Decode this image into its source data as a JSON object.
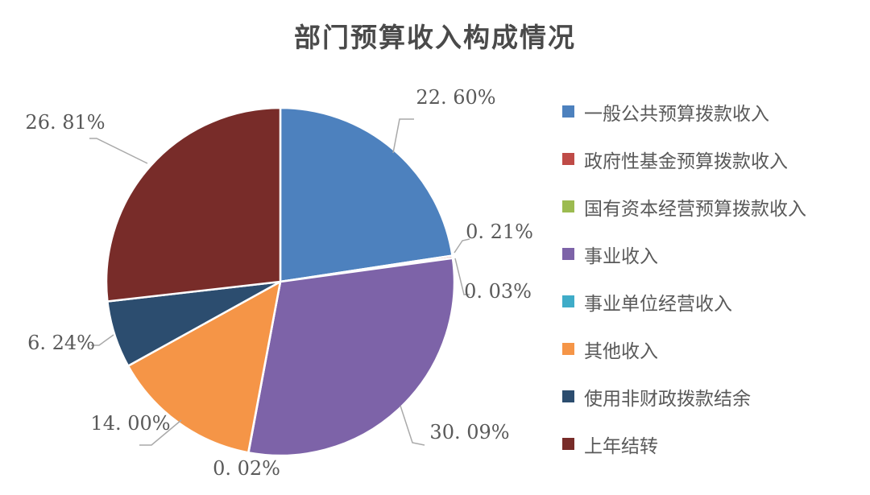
{
  "chart_data": {
    "type": "pie",
    "title": "部门预算收入构成情况",
    "legend_position": "right",
    "label_unit": "%",
    "total": 100.0,
    "series": [
      {
        "name": "一般公共预算拨款收入",
        "value": 22.6,
        "label": "22. 60%",
        "color": "#4d81be"
      },
      {
        "name": "政府性基金预算拨款收入",
        "value": 0.21,
        "label": "0. 21%",
        "color": "#bf4b47"
      },
      {
        "name": "国有资本经营预算拨款收入",
        "value": 0.03,
        "label": "0. 03%",
        "color": "#9cbb50"
      },
      {
        "name": "事业收入",
        "value": 30.09,
        "label": "30. 09%",
        "color": "#7d63a8"
      },
      {
        "name": "事业单位经营收入",
        "value": 0.02,
        "label": "0. 02%",
        "color": "#3facc8"
      },
      {
        "name": "其他收入",
        "value": 14.0,
        "label": "14. 00%",
        "color": "#f59547"
      },
      {
        "name": "使用非财政拨款结余",
        "value": 6.24,
        "label": "6. 24%",
        "color": "#2c4d6f"
      },
      {
        "name": "上年结转",
        "value": 26.81,
        "label": "26. 81%",
        "color": "#782c29"
      }
    ],
    "style": {
      "slice_border_color": "#ffffff",
      "leader_line_color": "#a9a9a9",
      "label_text_color": "#595959",
      "title_color": "#4a4a4a"
    }
  }
}
